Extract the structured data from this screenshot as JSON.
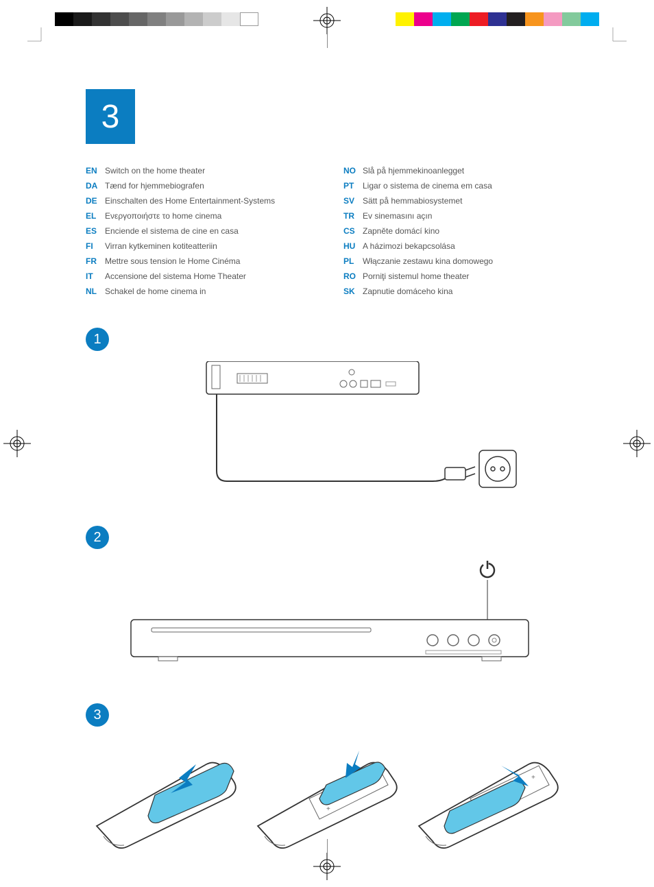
{
  "section_number": "3",
  "step_numbers": [
    "1",
    "2",
    "3"
  ],
  "colors": {
    "accent": "#0b7dc1",
    "text": "#555555",
    "code": "#0b7dc1",
    "remote_highlight": "#62c7e8",
    "arrow": "#0b7dc1"
  },
  "left_colorbar": [
    "#000000",
    "#1a1a1a",
    "#333333",
    "#4d4d4d",
    "#666666",
    "#808080",
    "#999999",
    "#b3b3b3",
    "#cccccc",
    "#e6e6e6",
    "#ffffff"
  ],
  "left_swatch_widths": [
    27,
    27,
    27,
    27,
    27,
    27,
    27,
    27,
    27,
    27,
    27
  ],
  "right_colorbar": [
    "#fff200",
    "#ec008c",
    "#00aeef",
    "#00a651",
    "#ed1c24",
    "#2e3192",
    "#231f20",
    "#f7941d",
    "#f49ac1",
    "#82ca9c",
    "#00adef"
  ],
  "right_swatch_widths": [
    27,
    27,
    27,
    27,
    27,
    27,
    27,
    27,
    27,
    27,
    27
  ],
  "languages_left": [
    {
      "code": "EN",
      "text": "Switch on the home theater"
    },
    {
      "code": "DA",
      "text": "Tænd for hjemmebiografen"
    },
    {
      "code": "DE",
      "text": "Einschalten des Home Entertainment-Systems"
    },
    {
      "code": "EL",
      "text": "Ενεργοποιήστε το home cinema"
    },
    {
      "code": "ES",
      "text": "Enciende el sistema de cine en casa"
    },
    {
      "code": "FI",
      "text": "Virran kytkeminen kotiteatteriin"
    },
    {
      "code": "FR",
      "text": "Mettre sous tension le Home Cinéma"
    },
    {
      "code": "IT",
      "text": "Accensione del sistema Home Theater"
    },
    {
      "code": "NL",
      "text": "Schakel de home cinema in"
    }
  ],
  "languages_right": [
    {
      "code": "NO",
      "text": "Slå på hjemmekinoanlegget"
    },
    {
      "code": "PT",
      "text": "Ligar o sistema de cinema em casa"
    },
    {
      "code": "SV",
      "text": "Sätt på hemmabiosystemet"
    },
    {
      "code": "TR",
      "text": "Ev sinemasını açın"
    },
    {
      "code": "CS",
      "text": "Zapněte domácí kino"
    },
    {
      "code": "HU",
      "text": "A házimozi bekapcsolása"
    },
    {
      "code": "PL",
      "text": "Włączanie zestawu kina domowego"
    },
    {
      "code": "RO",
      "text": "Porniţi sistemul home theater"
    },
    {
      "code": "SK",
      "text": "Zapnutie domáceho kina"
    }
  ],
  "diagrams": {
    "step1": {
      "type": "line-drawing",
      "subject": "home-theater-unit-rear-with-power-cable-to-wall-socket"
    },
    "step2": {
      "type": "line-drawing",
      "subject": "home-theater-unit-front-power-button",
      "callout_icon": "power"
    },
    "step3": {
      "type": "line-drawing",
      "subject": "remote-battery-install-3-views",
      "highlight_color": "#62c7e8",
      "arrow_color": "#0b7dc1"
    }
  }
}
